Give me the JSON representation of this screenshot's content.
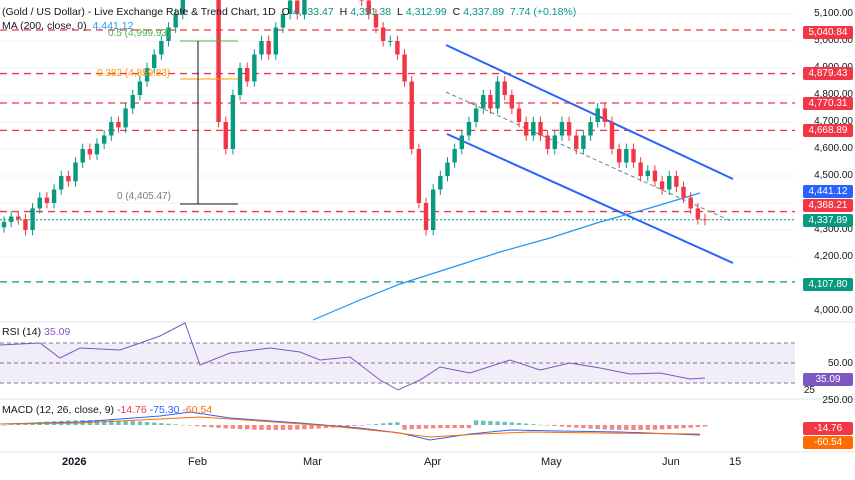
{
  "header": {
    "symbol_title": "(Gold / US Dollar) - Live Exchange Rate & Trend Chart, 1D",
    "ohlc_o": "O",
    "ohlc_o_val": "4,333.47",
    "ohlc_h": "H",
    "ohlc_h_val": "4,351.38",
    "ohlc_l": "L",
    "ohlc_l_val": "4,312.99",
    "ohlc_c": "C",
    "ohlc_c_val": "4,337.89",
    "change": "7.74 (+0.18%)",
    "ma_label": "MA (200, close, 0)",
    "ma_value": "4,441.12"
  },
  "fib_labels": {
    "fib_05": "0.5 (4,999.93)",
    "fib_0382": "0.382 (4,859.83)",
    "fib_0": "0 (4,405.47)"
  },
  "price_axis": [
    "5,100.00",
    "5,000.00",
    "4,900.00",
    "4,800.00",
    "4,700.00",
    "4,600.00",
    "4,500.00",
    "4,300.00",
    "4,200.00",
    "4,000.00"
  ],
  "price_tags": {
    "t5040": "5,040.84",
    "t4879": "4,879.43",
    "t4770": "4,770.31",
    "t4668": "4,668.89",
    "t4441": "4,441.12",
    "t4368": "4,368.21",
    "t4337": "4,337.89",
    "t4107": "4,107.80"
  },
  "rsi": {
    "label": "RSI (14)",
    "value": "35.09",
    "axis_50": "50.00",
    "axis_25": "25"
  },
  "macd": {
    "label": "MACD (12, 26, close, 9)",
    "v1": "-14.76",
    "v2": "-75.30",
    "v3": "-60.54",
    "axis_250": "250.00",
    "tag1": "-14.76",
    "tag2": "-60.54"
  },
  "time_axis": {
    "year": "2026",
    "feb": "Feb",
    "mar": "Mar",
    "apr": "Apr",
    "may": "May",
    "jun": "Jun",
    "d15": "15"
  },
  "colors": {
    "up": "#089981",
    "down": "#f23645",
    "ma": "#2196f3",
    "channel": "#2962ff",
    "rsi": "#7e57c2",
    "macd_line": "#2962ff",
    "signal_line": "#ff6d00"
  }
}
